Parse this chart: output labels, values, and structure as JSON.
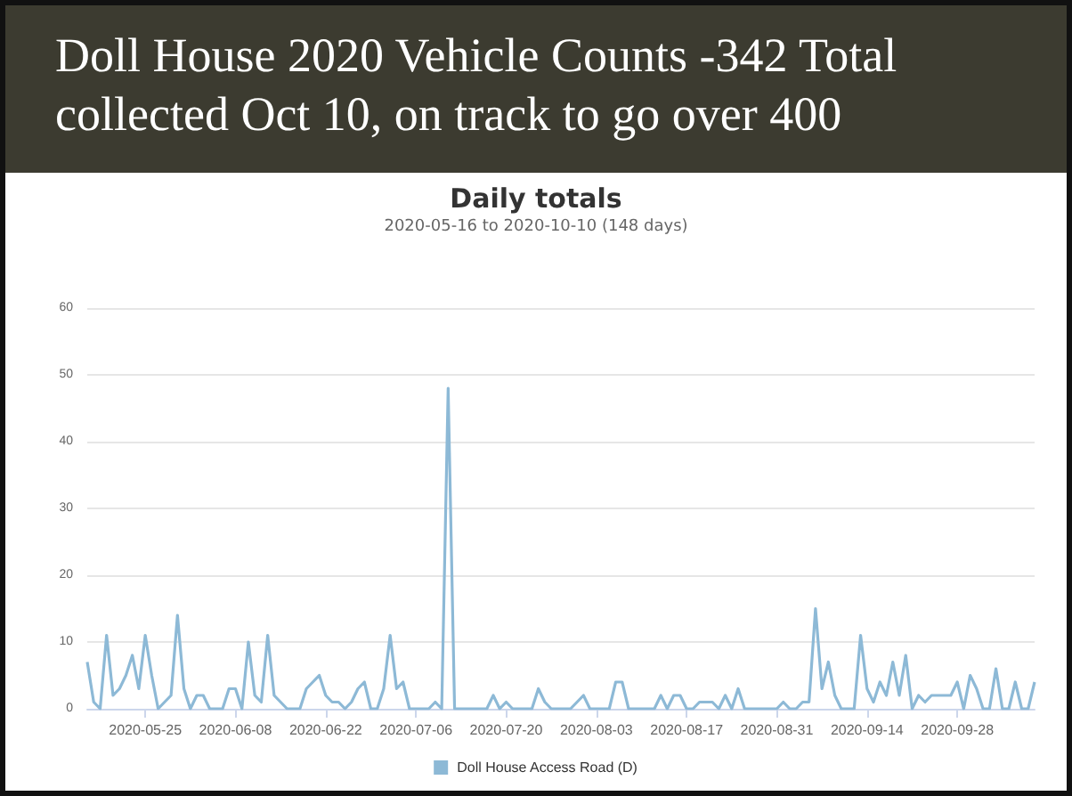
{
  "chart_data": {
    "type": "line",
    "title": "Daily totals",
    "subtitle": "2020-05-16 to 2020-10-10 (148 days)",
    "annotations": [
      "Doll House 2020 Vehicle Counts -342 Total collected Oct 10, on track to go over 400"
    ],
    "x": [
      "2020-05-16",
      "2020-05-17",
      "2020-05-18",
      "2020-05-19",
      "2020-05-20",
      "2020-05-21",
      "2020-05-22",
      "2020-05-23",
      "2020-05-24",
      "2020-05-25",
      "2020-05-26",
      "2020-05-27",
      "2020-05-28",
      "2020-05-29",
      "2020-05-30",
      "2020-05-31",
      "2020-06-01",
      "2020-06-02",
      "2020-06-03",
      "2020-06-04",
      "2020-06-05",
      "2020-06-06",
      "2020-06-07",
      "2020-06-08",
      "2020-06-09",
      "2020-06-10",
      "2020-06-11",
      "2020-06-12",
      "2020-06-13",
      "2020-06-14",
      "2020-06-15",
      "2020-06-16",
      "2020-06-17",
      "2020-06-18",
      "2020-06-19",
      "2020-06-20",
      "2020-06-21",
      "2020-06-22",
      "2020-06-23",
      "2020-06-24",
      "2020-06-25",
      "2020-06-26",
      "2020-06-27",
      "2020-06-28",
      "2020-06-29",
      "2020-06-30",
      "2020-07-01",
      "2020-07-02",
      "2020-07-03",
      "2020-07-04",
      "2020-07-05",
      "2020-07-06",
      "2020-07-07",
      "2020-07-08",
      "2020-07-09",
      "2020-07-10",
      "2020-07-11",
      "2020-07-12",
      "2020-07-13",
      "2020-07-14",
      "2020-07-15",
      "2020-07-16",
      "2020-07-17",
      "2020-07-18",
      "2020-07-19",
      "2020-07-20",
      "2020-07-21",
      "2020-07-22",
      "2020-07-23",
      "2020-07-24",
      "2020-07-25",
      "2020-07-26",
      "2020-07-27",
      "2020-07-28",
      "2020-07-29",
      "2020-07-30",
      "2020-07-31",
      "2020-08-01",
      "2020-08-02",
      "2020-08-03",
      "2020-08-04",
      "2020-08-05",
      "2020-08-06",
      "2020-08-07",
      "2020-08-08",
      "2020-08-09",
      "2020-08-10",
      "2020-08-11",
      "2020-08-12",
      "2020-08-13",
      "2020-08-14",
      "2020-08-15",
      "2020-08-16",
      "2020-08-17",
      "2020-08-18",
      "2020-08-19",
      "2020-08-20",
      "2020-08-21",
      "2020-08-22",
      "2020-08-23",
      "2020-08-24",
      "2020-08-25",
      "2020-08-26",
      "2020-08-27",
      "2020-08-28",
      "2020-08-29",
      "2020-08-30",
      "2020-08-31",
      "2020-09-01",
      "2020-09-02",
      "2020-09-03",
      "2020-09-04",
      "2020-09-05",
      "2020-09-06",
      "2020-09-07",
      "2020-09-08",
      "2020-09-09",
      "2020-09-10",
      "2020-09-11",
      "2020-09-12",
      "2020-09-13",
      "2020-09-14",
      "2020-09-15",
      "2020-09-16",
      "2020-09-17",
      "2020-09-18",
      "2020-09-19",
      "2020-09-20",
      "2020-09-21",
      "2020-09-22",
      "2020-09-23",
      "2020-09-24",
      "2020-09-25",
      "2020-09-26",
      "2020-09-27",
      "2020-09-28",
      "2020-09-29",
      "2020-09-30",
      "2020-10-01",
      "2020-10-02",
      "2020-10-03",
      "2020-10-04",
      "2020-10-05",
      "2020-10-06",
      "2020-10-07",
      "2020-10-08",
      "2020-10-09",
      "2020-10-10"
    ],
    "series": [
      {
        "name": "Doll House Access Road (D)",
        "color": "#8db9d6",
        "values": [
          7,
          1,
          0,
          11,
          2,
          3,
          5,
          8,
          3,
          11,
          5,
          0,
          1,
          2,
          14,
          3,
          0,
          2,
          2,
          0,
          0,
          0,
          3,
          3,
          0,
          10,
          2,
          1,
          11,
          2,
          1,
          0,
          0,
          0,
          3,
          4,
          5,
          2,
          1,
          1,
          0,
          1,
          3,
          4,
          0,
          0,
          3,
          11,
          3,
          4,
          0,
          0,
          0,
          0,
          1,
          0,
          48,
          0,
          0,
          0,
          0,
          0,
          0,
          2,
          0,
          1,
          0,
          0,
          0,
          0,
          3,
          1,
          0,
          0,
          0,
          0,
          1,
          2,
          0,
          0,
          0,
          0,
          4,
          4,
          0,
          0,
          0,
          0,
          0,
          2,
          0,
          2,
          2,
          0,
          0,
          1,
          1,
          1,
          0,
          2,
          0,
          3,
          0,
          0,
          0,
          0,
          0,
          0,
          1,
          0,
          0,
          1,
          1,
          15,
          3,
          7,
          2,
          0,
          0,
          0,
          11,
          3,
          1,
          4,
          2,
          7,
          2,
          8,
          0,
          2,
          1,
          2,
          2,
          2,
          2,
          4,
          0,
          5,
          3,
          0,
          0,
          6,
          0,
          0,
          4,
          0,
          0,
          4
        ]
      }
    ],
    "xlim": [
      "2020-05-16",
      "2020-10-10"
    ],
    "xticks": [
      "2020-05-25",
      "2020-06-08",
      "2020-06-22",
      "2020-07-06",
      "2020-07-20",
      "2020-08-03",
      "2020-08-17",
      "2020-08-31",
      "2020-09-14",
      "2020-09-28"
    ],
    "ylim": [
      0,
      60
    ],
    "yticks": [
      0,
      10,
      20,
      30,
      40,
      50,
      60
    ],
    "grid": "y",
    "legend": "bottom",
    "marker": "none",
    "line_style": "solid"
  }
}
